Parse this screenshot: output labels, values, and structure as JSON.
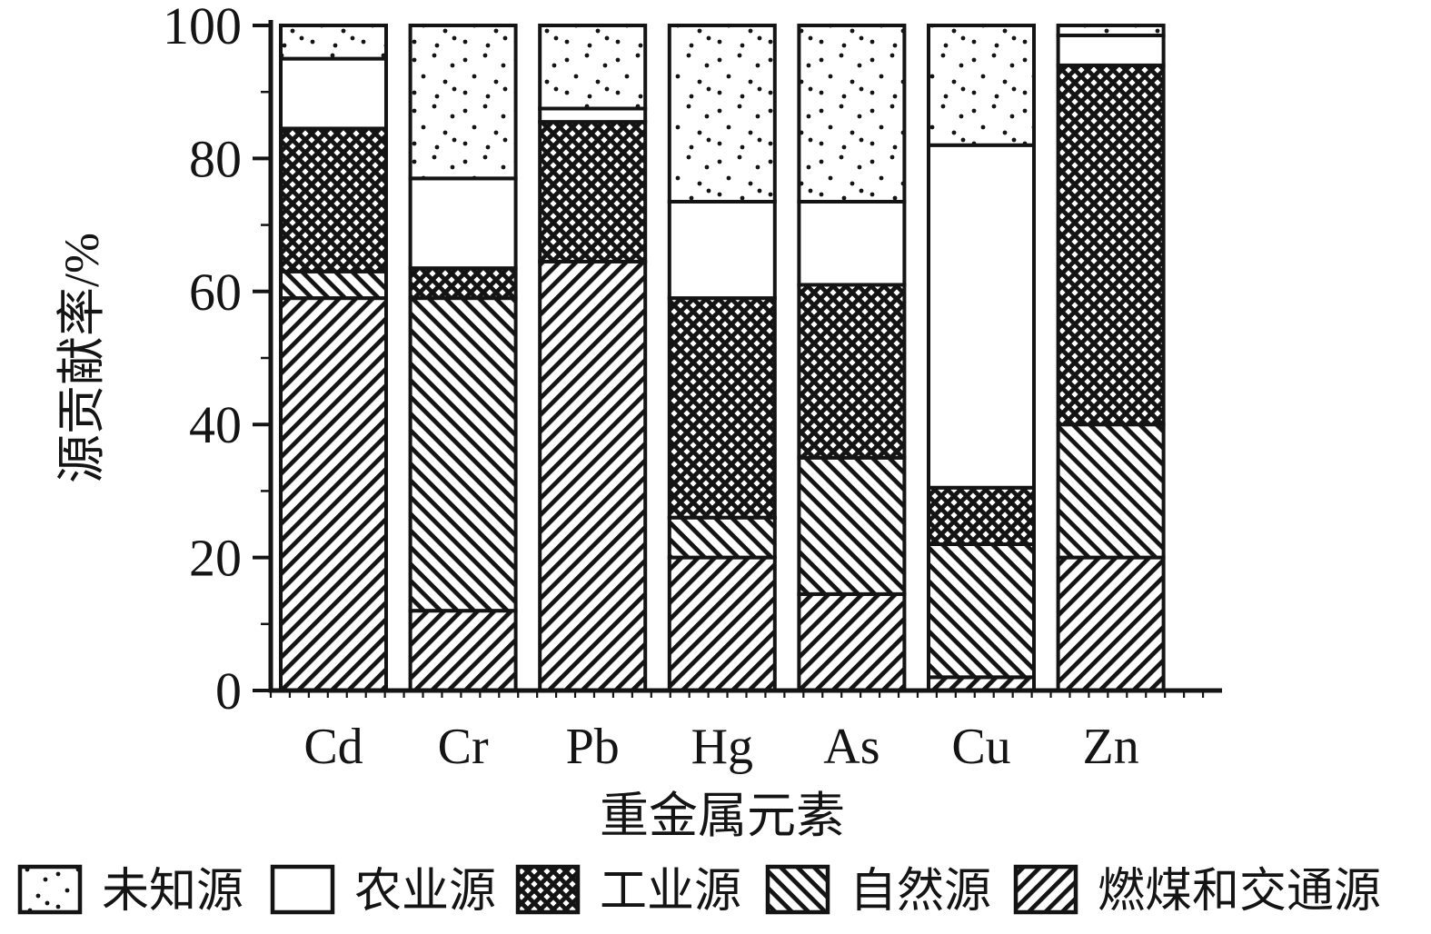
{
  "colors": {
    "ink": "#141414",
    "background": "#ffffff"
  },
  "chart_data": {
    "type": "bar",
    "stacked": true,
    "title": "",
    "xlabel": "重金属元素",
    "ylabel": "源贡献率/%",
    "ylim": [
      0,
      100
    ],
    "y_ticks": [
      0,
      20,
      40,
      60,
      80,
      100
    ],
    "grid": false,
    "legend_position": "bottom",
    "categories": [
      "Cd",
      "Cr",
      "Pb",
      "Hg",
      "As",
      "Cu",
      "Zn"
    ],
    "series": [
      {
        "name": "燃煤和交通源",
        "pattern": "slash-hatch",
        "values": [
          59,
          12,
          64.5,
          20,
          14.5,
          2,
          20
        ]
      },
      {
        "name": "自然源",
        "pattern": "backslash-hatch",
        "values": [
          4,
          47,
          0,
          6,
          20.5,
          20,
          20
        ]
      },
      {
        "name": "工业源",
        "pattern": "crosshatch",
        "values": [
          21.5,
          4.5,
          21,
          33,
          26,
          8.5,
          54
        ]
      },
      {
        "name": "农业源",
        "pattern": "blank",
        "values": [
          10.5,
          13.5,
          2,
          14.5,
          12.5,
          51.5,
          4.5
        ]
      },
      {
        "name": "未知源",
        "pattern": "dots",
        "values": [
          5,
          23,
          12.5,
          26.5,
          26.5,
          18,
          1.5
        ]
      }
    ],
    "legend": [
      {
        "label": "未知源",
        "pattern": "dots"
      },
      {
        "label": "农业源",
        "pattern": "blank"
      },
      {
        "label": "工业源",
        "pattern": "crosshatch"
      },
      {
        "label": "自然源",
        "pattern": "backslash-hatch"
      },
      {
        "label": "燃煤和交通源",
        "pattern": "slash-hatch"
      }
    ]
  }
}
